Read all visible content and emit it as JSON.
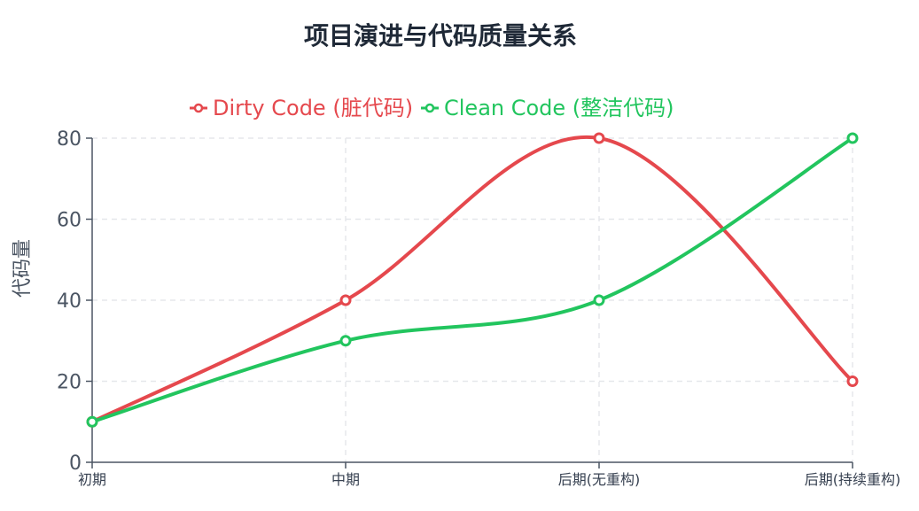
{
  "chart_data": {
    "type": "line",
    "title": "项目演进与代码质量关系",
    "xlabel": "",
    "ylabel": "代码量",
    "categories": [
      "初期",
      "中期",
      "后期(无重构)",
      "后期(持续重构)"
    ],
    "ylim": [
      0,
      80
    ],
    "yticks": [
      0,
      20,
      40,
      60,
      80
    ],
    "grid": true,
    "legend_position": "top-center",
    "smooth": true,
    "series": [
      {
        "name": "Dirty Code (脏代码)",
        "color": "#e5484d",
        "values": [
          10,
          40,
          80,
          20
        ]
      },
      {
        "name": "Clean Code (整洁代码)",
        "color": "#22c55e",
        "values": [
          10,
          30,
          40,
          80
        ]
      }
    ]
  }
}
